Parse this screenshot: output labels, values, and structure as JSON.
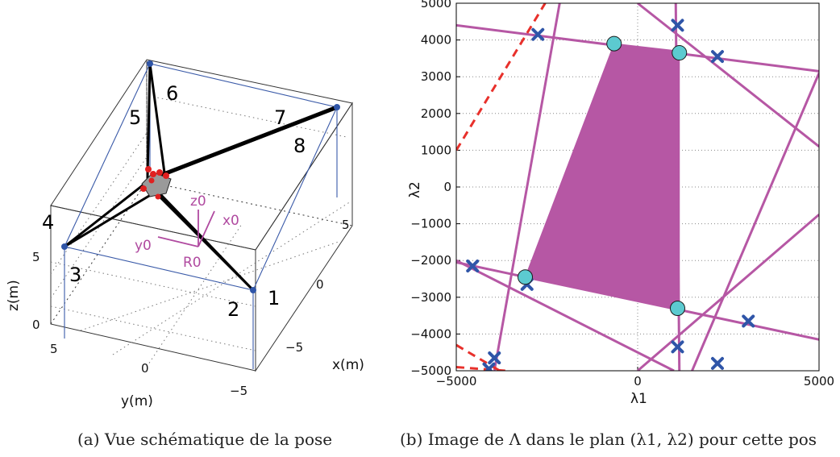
{
  "captions": {
    "a": "(a) Vue schématique de la pose",
    "b": "(b) Image de Λ dans le plan (λ1, λ2) pour cette pos"
  },
  "left_figure": {
    "cable_numbers": [
      "1",
      "2",
      "3",
      "4",
      "5",
      "6",
      "7",
      "8"
    ],
    "frame_labels": {
      "z": "z0",
      "x": "x0",
      "y": "y0",
      "origin": "R0"
    },
    "axis_labels": {
      "z": "z(m)",
      "y": "y(m)",
      "x": "x(m)"
    },
    "z_ticks": [
      "0",
      "5"
    ],
    "y_ticks": [
      "5",
      "0",
      "−5"
    ],
    "x_ticks": [
      "5",
      "0",
      "−5"
    ]
  },
  "colors": {
    "feasible_region": "#b657a4",
    "boundary_lines": "#b657a4",
    "dashed_lines": "#e8302b",
    "cross_markers": "#2f55a8",
    "circle_markers": "#5ccad0",
    "frame_lines": "#3a5aa8",
    "platform_points": "#e02020"
  },
  "chart_data": {
    "type": "scatter",
    "title": "",
    "xlabel": "λ1",
    "ylabel": "λ2",
    "xlim": [
      -5000,
      5000
    ],
    "ylim": [
      -5000,
      5000
    ],
    "x_ticks": [
      -5000,
      0,
      5000
    ],
    "y_ticks": [
      -5000,
      -4000,
      -3000,
      -2000,
      -1000,
      0,
      1000,
      2000,
      3000,
      4000,
      5000
    ],
    "x_tick_labels": [
      "−5000",
      "0",
      "5000"
    ],
    "y_tick_labels": [
      "−5000",
      "−4000",
      "−3000",
      "−2000",
      "−1000",
      "0",
      "1000",
      "2000",
      "3000",
      "4000",
      "5000"
    ],
    "grid": true,
    "feasible_polygon": [
      [
        -650,
        3900
      ],
      [
        1150,
        3700
      ],
      [
        1150,
        -3300
      ],
      [
        -3100,
        -2450
      ]
    ],
    "boundary_lines": [
      [
        [
          -5000,
          4400
        ],
        [
          5000,
          3150
        ]
      ],
      [
        [
          -5000,
          -2050
        ],
        [
          5000,
          -4150
        ]
      ],
      [
        [
          -5000,
          -2000
        ],
        [
          1000,
          -5000
        ]
      ],
      [
        [
          1050,
          5000
        ],
        [
          1150,
          -5000
        ]
      ],
      [
        [
          -2150,
          5000
        ],
        [
          -3950,
          -5000
        ]
      ],
      [
        [
          0,
          5000
        ],
        [
          5000,
          1100
        ]
      ],
      [
        [
          0,
          -5000
        ],
        [
          5000,
          -750
        ]
      ],
      [
        [
          1500,
          -5000
        ],
        [
          5000,
          3100
        ]
      ]
    ],
    "dashed_lines": [
      [
        [
          -5000,
          1000
        ],
        [
          -2550,
          5000
        ]
      ],
      [
        [
          -5000,
          -4300
        ],
        [
          -3800,
          -5000
        ]
      ],
      [
        [
          -5000,
          -4900
        ],
        [
          -3650,
          -5000
        ]
      ]
    ],
    "cross_markers": [
      [
        -2750,
        4150
      ],
      [
        1100,
        4400
      ],
      [
        2200,
        3550
      ],
      [
        -4550,
        -2150
      ],
      [
        -3050,
        -2650
      ],
      [
        3050,
        -3650
      ],
      [
        1100,
        -4350
      ],
      [
        2200,
        -4800
      ],
      [
        -3950,
        -4650
      ],
      [
        -4100,
        -4950
      ]
    ],
    "circle_markers": [
      [
        -650,
        3900
      ],
      [
        1150,
        3650
      ],
      [
        -3100,
        -2450
      ],
      [
        1100,
        -3300
      ]
    ]
  }
}
